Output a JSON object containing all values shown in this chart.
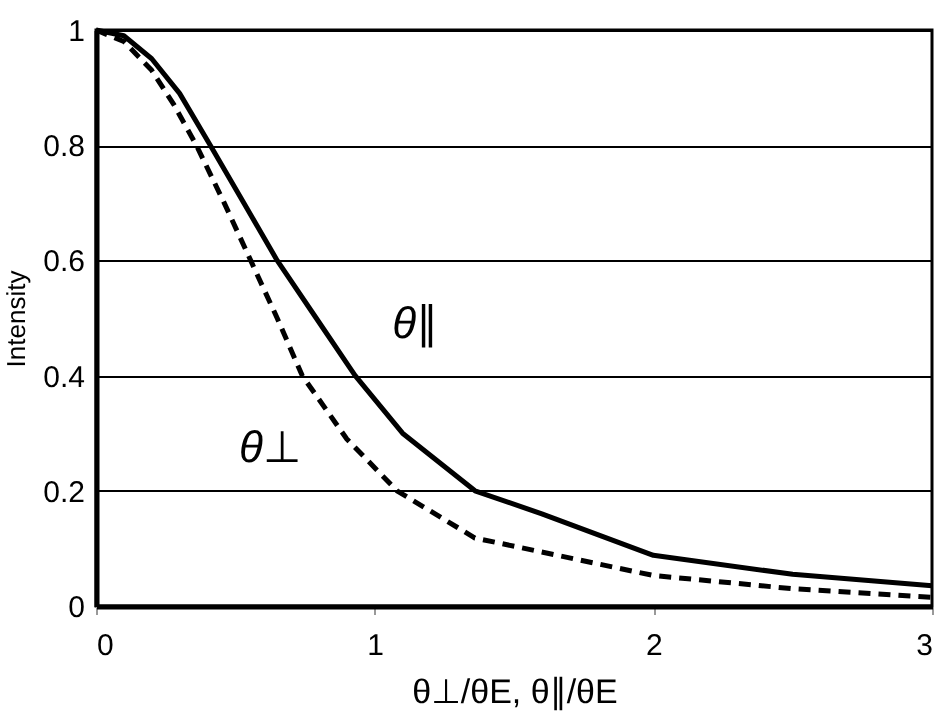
{
  "chart_data": {
    "type": "line",
    "xlabel": "θ⊥/θE, θ∥/θE",
    "ylabel": "Intensity",
    "xlim": [
      0,
      3
    ],
    "ylim": [
      0,
      1
    ],
    "xticks": [
      0,
      1,
      2,
      3
    ],
    "yticks": [
      0,
      0.2,
      0.4,
      0.6,
      0.8,
      1
    ],
    "grid": "y",
    "legend": false,
    "marker": "none",
    "series": [
      {
        "name": "θ∥",
        "color": "#000000",
        "line_style": "solid",
        "x": [
          0,
          0.1,
          0.2,
          0.3,
          0.41,
          0.53,
          0.65,
          0.79,
          0.93,
          1.1,
          1.36,
          1.6,
          2,
          2.5,
          3
        ],
        "values": [
          1,
          0.99,
          0.95,
          0.89,
          0.8,
          0.7,
          0.6,
          0.5,
          0.4,
          0.3,
          0.2,
          0.16,
          0.088,
          0.055,
          0.035
        ]
      },
      {
        "name": "θ⊥",
        "color": "#000000",
        "line_style": "dashed",
        "x": [
          0,
          0.1,
          0.2,
          0.28,
          0.36,
          0.46,
          0.555,
          0.65,
          0.74,
          0.9,
          1.08,
          1.36,
          2,
          2.5,
          3
        ],
        "values": [
          1,
          0.98,
          0.93,
          0.87,
          0.8,
          0.7,
          0.6,
          0.5,
          0.4,
          0.29,
          0.2,
          0.118,
          0.053,
          0.03,
          0.015
        ]
      }
    ]
  }
}
